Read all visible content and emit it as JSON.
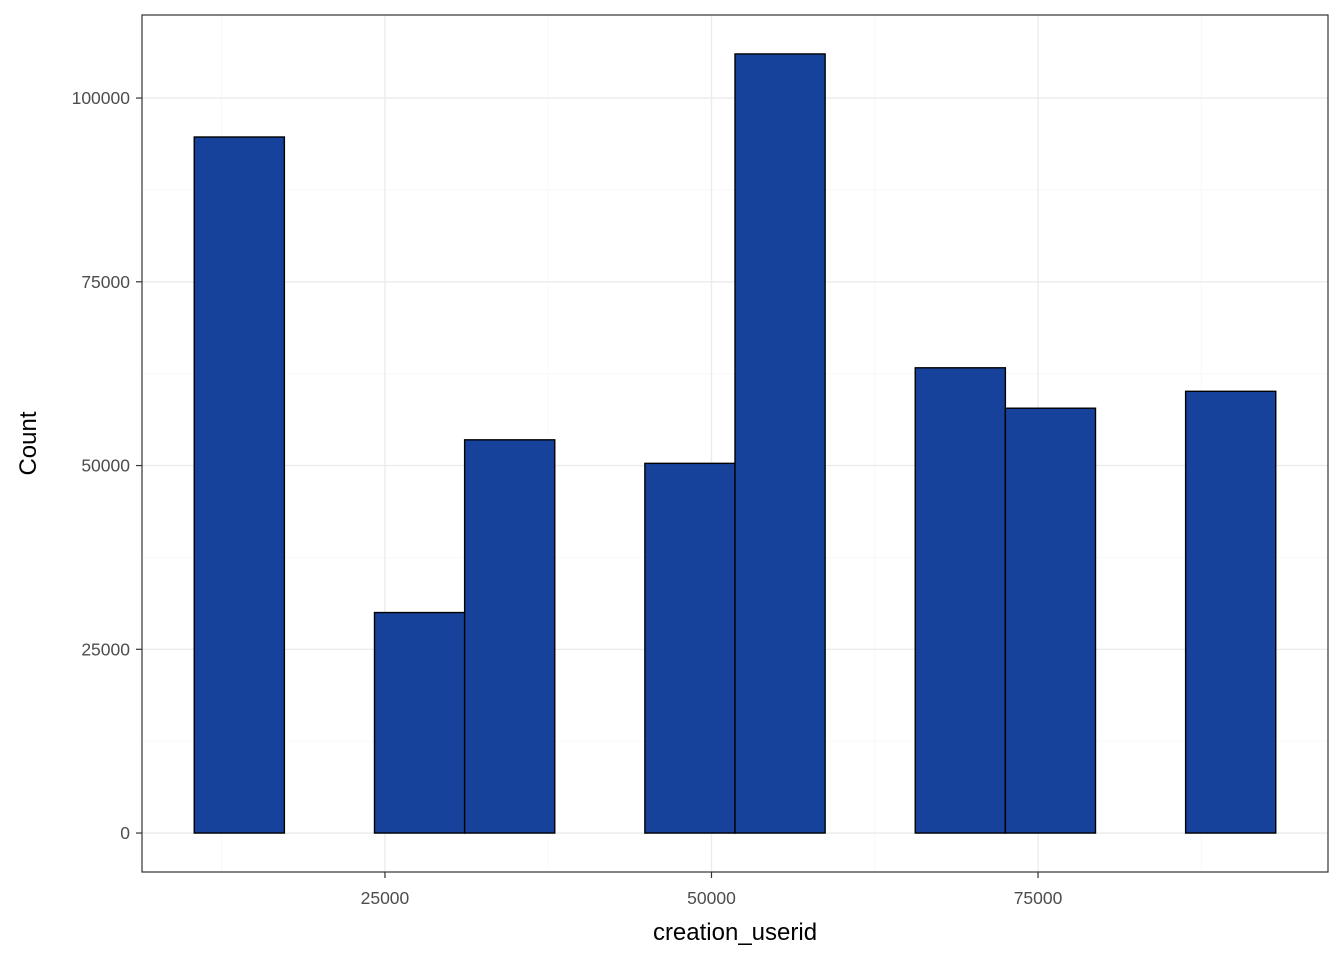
{
  "chart_data": {
    "type": "bar",
    "title": "",
    "xlabel": "creation_userid",
    "ylabel": "Count",
    "bins": [
      {
        "x_start": 10400,
        "x_end": 17300,
        "count": 94700
      },
      {
        "x_start": 17300,
        "x_end": 24200,
        "count": 0
      },
      {
        "x_start": 24200,
        "x_end": 31100,
        "count": 30000
      },
      {
        "x_start": 31100,
        "x_end": 38000,
        "count": 53500
      },
      {
        "x_start": 38000,
        "x_end": 44900,
        "count": 0
      },
      {
        "x_start": 44900,
        "x_end": 51800,
        "count": 50300
      },
      {
        "x_start": 51800,
        "x_end": 58700,
        "count": 106000
      },
      {
        "x_start": 58700,
        "x_end": 65600,
        "count": 0
      },
      {
        "x_start": 65600,
        "x_end": 72500,
        "count": 63300
      },
      {
        "x_start": 72500,
        "x_end": 79400,
        "count": 57800
      },
      {
        "x_start": 79400,
        "x_end": 86300,
        "count": 0
      },
      {
        "x_start": 86300,
        "x_end": 93200,
        "count": 60100
      }
    ],
    "xlim": [
      6400,
      97200
    ],
    "ylim": [
      -5300,
      111300
    ],
    "x_ticks": [
      25000,
      50000,
      75000
    ],
    "x_tick_labels": [
      "25000",
      "50000",
      "75000"
    ],
    "y_ticks": [
      0,
      25000,
      50000,
      75000,
      100000
    ],
    "y_tick_labels": [
      "0",
      "25000",
      "50000",
      "75000",
      "100000"
    ],
    "grid": true,
    "legend": "none",
    "colors": {
      "bar_fill": "#17429b",
      "bar_outline": "#000000",
      "grid_major": "#ebebeb",
      "grid_minor": "#f5f5f5",
      "panel_border": "#333333",
      "tick_text": "#4d4d4d"
    }
  }
}
